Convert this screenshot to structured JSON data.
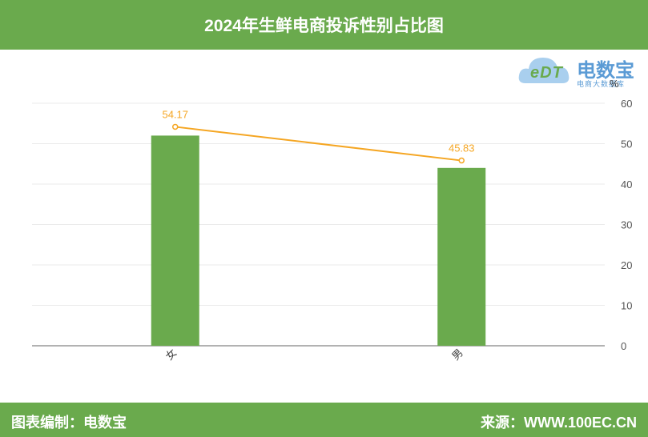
{
  "header": {
    "title": "2024年生鲜电商投诉性别占比图"
  },
  "logo": {
    "mark": "eDT",
    "name": "电数宝",
    "subtitle": "电商大数据库"
  },
  "footer": {
    "left_text": "图表编制：电数宝",
    "right_text": "来源：WWW.100EC.CN"
  },
  "colors": {
    "bar": "#6aaa4d",
    "line": "#f5a623",
    "header_bg": "#6aaa4d"
  },
  "chart_data": {
    "type": "bar",
    "categories": [
      "女",
      "男"
    ],
    "series": [
      {
        "type": "bar",
        "values": [
          52,
          44
        ]
      },
      {
        "type": "line",
        "values": [
          54.17,
          45.83
        ]
      }
    ],
    "data_labels": [
      "54.17",
      "45.83"
    ],
    "ylabel": "%",
    "y_axis_position": "right",
    "ylim": [
      0,
      60
    ],
    "yticks": [
      0,
      10,
      20,
      30,
      40,
      50,
      60
    ],
    "grid": true
  }
}
